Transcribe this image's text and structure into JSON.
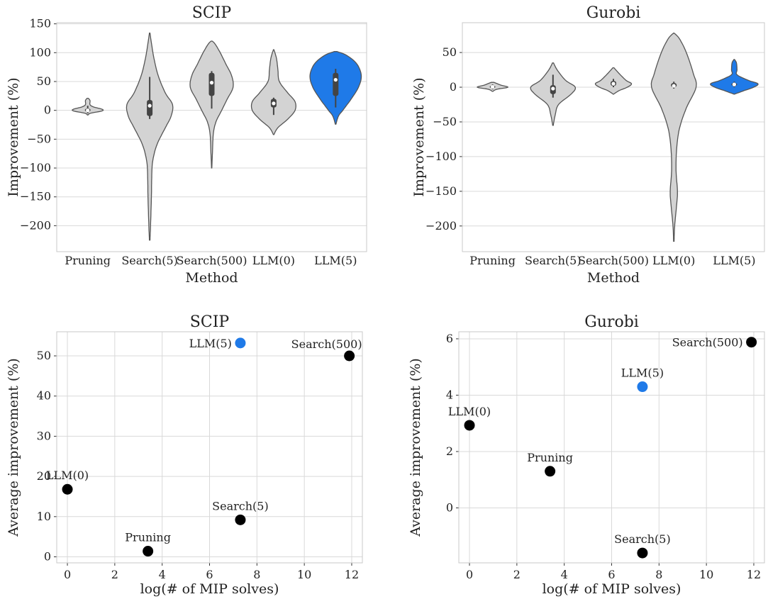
{
  "colors": {
    "highlight": "#1f7ae8",
    "default_violin": "#d3d3d3",
    "point": "#000000",
    "inner_box": "#444444"
  },
  "chart_data": [
    {
      "id": "scip-violin",
      "type": "violin",
      "title": "SCIP",
      "xlabel": "Method",
      "ylabel": "Improvement (%)",
      "categories": [
        "Pruning",
        "Search(5)",
        "Search(500)",
        "LLM(0)",
        "LLM(5)"
      ],
      "highlight": "LLM(5)",
      "ylim": [
        -245,
        152
      ],
      "yticks": [
        150,
        100,
        50,
        0,
        -50,
        -100,
        -150,
        -200
      ],
      "ytick_labels": [
        "150",
        "100",
        "50",
        "0",
        "−50",
        "−100",
        "−150",
        "−200"
      ],
      "grid": true,
      "violins": [
        {
          "name": "Pruning",
          "median": 0,
          "q1": -2,
          "q3": 3,
          "whisker": [
            -5,
            8
          ],
          "profile": [
            [
              -8,
              0.01
            ],
            [
              -5,
              0.1
            ],
            [
              -1,
              0.5
            ],
            [
              2,
              0.5
            ],
            [
              6,
              0.2
            ],
            [
              10,
              0.08
            ],
            [
              17,
              0.08
            ],
            [
              21,
              0.02
            ]
          ]
        },
        {
          "name": "Search(5)",
          "median": 8,
          "q1": -10,
          "q3": 18,
          "whisker": [
            -15,
            58
          ],
          "profile": [
            [
              -225,
              0.01
            ],
            [
              -200,
              0.03
            ],
            [
              -150,
              0.06
            ],
            [
              -120,
              0.07
            ],
            [
              -90,
              0.1
            ],
            [
              -60,
              0.25
            ],
            [
              -30,
              0.55
            ],
            [
              -10,
              0.75
            ],
            [
              10,
              0.8
            ],
            [
              30,
              0.55
            ],
            [
              60,
              0.3
            ],
            [
              90,
              0.15
            ],
            [
              120,
              0.05
            ],
            [
              134,
              0.01
            ]
          ]
        },
        {
          "name": "Search(500)",
          "median": 48,
          "q1": 25,
          "q3": 65,
          "whisker": [
            3,
            68
          ],
          "profile": [
            [
              -100,
              0.005
            ],
            [
              -70,
              0.03
            ],
            [
              -40,
              0.06
            ],
            [
              -20,
              0.15
            ],
            [
              0,
              0.35
            ],
            [
              20,
              0.55
            ],
            [
              40,
              0.75
            ],
            [
              60,
              0.7
            ],
            [
              80,
              0.5
            ],
            [
              100,
              0.3
            ],
            [
              115,
              0.12
            ],
            [
              120,
              0.02
            ]
          ]
        },
        {
          "name": "LLM(0)",
          "median": 12,
          "q1": 5,
          "q3": 20,
          "whisker": [
            -8,
            22
          ],
          "profile": [
            [
              -42,
              0.01
            ],
            [
              -30,
              0.15
            ],
            [
              -15,
              0.5
            ],
            [
              0,
              0.75
            ],
            [
              15,
              0.75
            ],
            [
              30,
              0.5
            ],
            [
              50,
              0.2
            ],
            [
              70,
              0.15
            ],
            [
              90,
              0.1
            ],
            [
              105,
              0.01
            ]
          ]
        },
        {
          "name": "LLM(5)",
          "median": 53,
          "q1": 25,
          "q3": 65,
          "whisker": [
            5,
            72
          ],
          "profile": [
            [
              -24,
              0.01
            ],
            [
              -10,
              0.1
            ],
            [
              0,
              0.25
            ],
            [
              20,
              0.55
            ],
            [
              40,
              0.8
            ],
            [
              60,
              0.9
            ],
            [
              80,
              0.75
            ],
            [
              95,
              0.4
            ],
            [
              102,
              0.05
            ]
          ]
        }
      ]
    },
    {
      "id": "gurobi-violin",
      "type": "violin",
      "title": "Gurobi",
      "xlabel": "Method",
      "ylabel": "Improvement (%)",
      "categories": [
        "Pruning",
        "Search(5)",
        "Search(500)",
        "LLM(0)",
        "LLM(5)"
      ],
      "highlight": "LLM(5)",
      "ylim": [
        -237,
        93
      ],
      "yticks": [
        50,
        0,
        -50,
        -100,
        -150,
        -200
      ],
      "ytick_labels": [
        "50",
        "0",
        "−50",
        "−100",
        "−150",
        "−200"
      ],
      "grid": true,
      "violins": [
        {
          "name": "Pruning",
          "median": 0.5,
          "q1": -1,
          "q3": 2,
          "whisker": [
            -3,
            4
          ],
          "profile": [
            [
              -6,
              0.01
            ],
            [
              -3,
              0.15
            ],
            [
              0,
              0.55
            ],
            [
              3,
              0.3
            ],
            [
              7,
              0.05
            ]
          ]
        },
        {
          "name": "Search(5)",
          "median": -2,
          "q1": -10,
          "q3": 3,
          "whisker": [
            -15,
            18
          ],
          "profile": [
            [
              -55,
              0.01
            ],
            [
              -40,
              0.08
            ],
            [
              -25,
              0.2
            ],
            [
              -10,
              0.65
            ],
            [
              0,
              0.8
            ],
            [
              10,
              0.45
            ],
            [
              25,
              0.15
            ],
            [
              35,
              0.02
            ]
          ]
        },
        {
          "name": "Search(500)",
          "median": 5,
          "q1": 2,
          "q3": 9,
          "whisker": [
            0,
            12
          ],
          "profile": [
            [
              -10,
              0.01
            ],
            [
              -5,
              0.2
            ],
            [
              0,
              0.5
            ],
            [
              5,
              0.65
            ],
            [
              10,
              0.45
            ],
            [
              20,
              0.2
            ],
            [
              28,
              0.02
            ]
          ]
        },
        {
          "name": "LLM(0)",
          "median": 2,
          "q1": 0,
          "q3": 6,
          "whisker": [
            -2,
            8
          ],
          "profile": [
            [
              -222,
              0.01
            ],
            [
              -200,
              0.03
            ],
            [
              -170,
              0.1
            ],
            [
              -150,
              0.13
            ],
            [
              -120,
              0.08
            ],
            [
              -90,
              0.1
            ],
            [
              -60,
              0.2
            ],
            [
              -30,
              0.45
            ],
            [
              0,
              0.8
            ],
            [
              20,
              0.7
            ],
            [
              50,
              0.45
            ],
            [
              70,
              0.2
            ],
            [
              78,
              0.01
            ]
          ]
        },
        {
          "name": "LLM(5)",
          "median": 4,
          "q1": 2,
          "q3": 6,
          "whisker": [
            0,
            8
          ],
          "profile": [
            [
              -10,
              0.01
            ],
            [
              -5,
              0.35
            ],
            [
              0,
              0.7
            ],
            [
              5,
              0.85
            ],
            [
              10,
              0.5
            ],
            [
              18,
              0.1
            ],
            [
              25,
              0.1
            ],
            [
              35,
              0.08
            ],
            [
              40,
              0.01
            ]
          ]
        }
      ]
    },
    {
      "id": "scip-scatter",
      "type": "scatter",
      "title": "SCIP",
      "xlabel": "log(# of MIP solves)",
      "ylabel": "Average improvement (%)",
      "xlim": [
        -0.45,
        12.45
      ],
      "ylim": [
        -1.5,
        56
      ],
      "xticks": [
        0,
        2,
        4,
        6,
        8,
        10,
        12
      ],
      "xtick_labels": [
        "0",
        "2",
        "4",
        "6",
        "8",
        "10",
        "12"
      ],
      "yticks": [
        0,
        10,
        20,
        30,
        40,
        50
      ],
      "ytick_labels": [
        "0",
        "10",
        "20",
        "30",
        "40",
        "50"
      ],
      "grid": true,
      "points": [
        {
          "label": "LLM(0)",
          "x": 0.0,
          "y": 16.8,
          "highlight": false,
          "label_pos": "above"
        },
        {
          "label": "Pruning",
          "x": 3.4,
          "y": 1.4,
          "highlight": false,
          "label_pos": "above"
        },
        {
          "label": "Search(5)",
          "x": 7.3,
          "y": 9.2,
          "highlight": false,
          "label_pos": "above"
        },
        {
          "label": "LLM(5)",
          "x": 7.3,
          "y": 53.2,
          "highlight": true,
          "label_pos": "left"
        },
        {
          "label": "Search(500)",
          "x": 11.9,
          "y": 50.0,
          "highlight": false,
          "label_pos": "above-left"
        }
      ]
    },
    {
      "id": "gurobi-scatter",
      "type": "scatter",
      "title": "Gurobi",
      "xlabel": "log(# of MIP solves)",
      "ylabel": "Average improvement (%)",
      "xlim": [
        -0.45,
        12.45
      ],
      "ylim": [
        -1.95,
        6.25
      ],
      "xticks": [
        0,
        2,
        4,
        6,
        8,
        10,
        12
      ],
      "xtick_labels": [
        "0",
        "2",
        "4",
        "6",
        "8",
        "10",
        "12"
      ],
      "yticks": [
        0,
        2,
        4,
        6
      ],
      "ytick_labels": [
        "0",
        "2",
        "4",
        "6"
      ],
      "grid": true,
      "points": [
        {
          "label": "LLM(0)",
          "x": 0.0,
          "y": 2.93,
          "highlight": false,
          "label_pos": "above"
        },
        {
          "label": "Pruning",
          "x": 3.4,
          "y": 1.3,
          "highlight": false,
          "label_pos": "above"
        },
        {
          "label": "Search(5)",
          "x": 7.3,
          "y": -1.6,
          "highlight": false,
          "label_pos": "above"
        },
        {
          "label": "LLM(5)",
          "x": 7.3,
          "y": 4.3,
          "highlight": true,
          "label_pos": "above"
        },
        {
          "label": "Search(500)",
          "x": 11.9,
          "y": 5.88,
          "highlight": false,
          "label_pos": "left"
        }
      ]
    }
  ]
}
